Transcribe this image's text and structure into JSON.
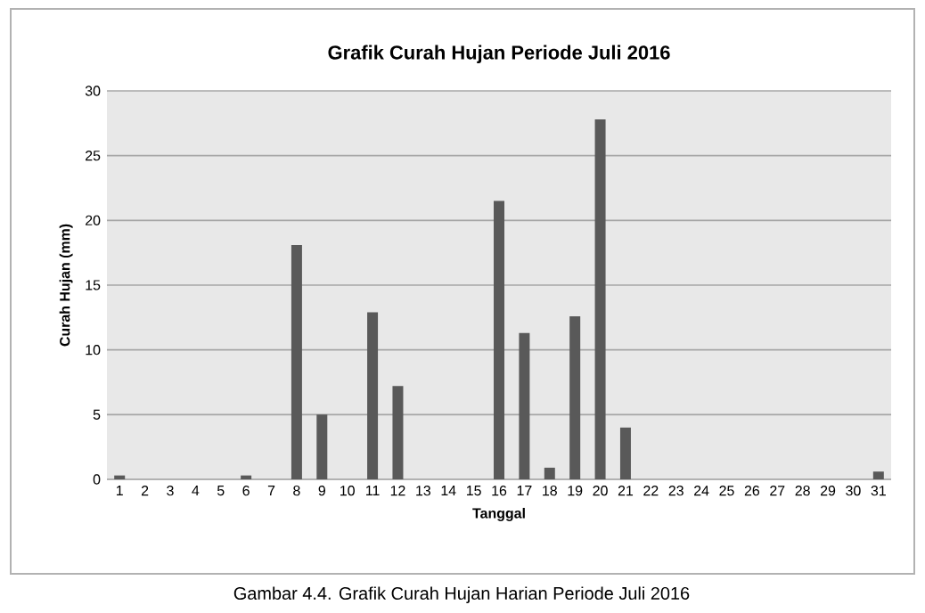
{
  "chart_data": {
    "type": "bar",
    "title": "Grafik Curah Hujan Periode Juli 2016",
    "xlabel": "Tanggal",
    "ylabel": "Curah Hujan (mm)",
    "categories": [
      "1",
      "2",
      "3",
      "4",
      "5",
      "6",
      "7",
      "8",
      "9",
      "10",
      "11",
      "12",
      "13",
      "14",
      "15",
      "16",
      "17",
      "18",
      "19",
      "20",
      "21",
      "22",
      "23",
      "24",
      "25",
      "26",
      "27",
      "28",
      "29",
      "30",
      "31"
    ],
    "values": [
      0.3,
      0,
      0,
      0,
      0,
      0.3,
      0,
      18.1,
      5.0,
      0,
      12.9,
      7.2,
      0,
      0,
      0,
      21.5,
      11.3,
      0.9,
      12.6,
      27.8,
      4.0,
      0,
      0,
      0,
      0,
      0,
      0,
      0,
      0,
      0,
      0.6
    ],
    "color": "#595959",
    "ylim": [
      0,
      30
    ],
    "yticks": [
      0,
      5,
      10,
      15,
      20,
      25,
      30
    ],
    "grid": "y",
    "annotations": [
      "Gambar 4.4. Grafik Curah Hujan Harian Periode Juli 2016"
    ]
  }
}
